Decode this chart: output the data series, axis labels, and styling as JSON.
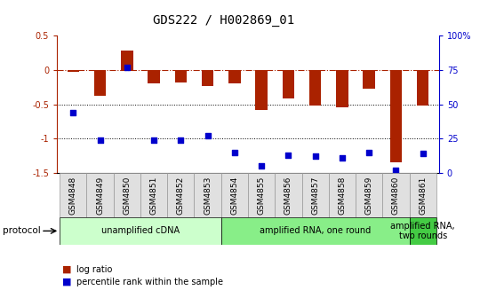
{
  "title": "GDS222 / H002869_01",
  "samples": [
    "GSM4848",
    "GSM4849",
    "GSM4850",
    "GSM4851",
    "GSM4852",
    "GSM4853",
    "GSM4854",
    "GSM4855",
    "GSM4856",
    "GSM4857",
    "GSM4858",
    "GSM4859",
    "GSM4860",
    "GSM4861"
  ],
  "log_ratio": [
    -0.02,
    -0.38,
    0.28,
    -0.2,
    -0.18,
    -0.23,
    -0.2,
    -0.58,
    -0.42,
    -0.52,
    -0.55,
    -0.27,
    -1.35,
    -0.52
  ],
  "percentile": [
    44,
    24,
    77,
    24,
    24,
    27,
    15,
    5,
    13,
    12,
    11,
    15,
    2,
    14
  ],
  "bar_color": "#aa2200",
  "dot_color": "#0000cc",
  "ylim_left": [
    -1.5,
    0.5
  ],
  "ylim_right": [
    0,
    100
  ],
  "protocol_groups": [
    {
      "label": "unamplified cDNA",
      "start": 0,
      "end": 5,
      "color": "#ccffcc"
    },
    {
      "label": "amplified RNA, one round",
      "start": 6,
      "end": 12,
      "color": "#88ee88"
    },
    {
      "label": "amplified RNA,\ntwo rounds",
      "start": 13,
      "end": 13,
      "color": "#44cc44"
    }
  ],
  "legend_items": [
    {
      "label": "log ratio",
      "color": "#aa2200"
    },
    {
      "label": "percentile rank within the sample",
      "color": "#0000cc"
    }
  ],
  "protocol_label": "protocol",
  "background_color": "#ffffff",
  "title_fontsize": 10,
  "tick_fontsize": 7,
  "sample_fontsize": 6.5,
  "proto_fontsize": 7,
  "legend_fontsize": 7
}
